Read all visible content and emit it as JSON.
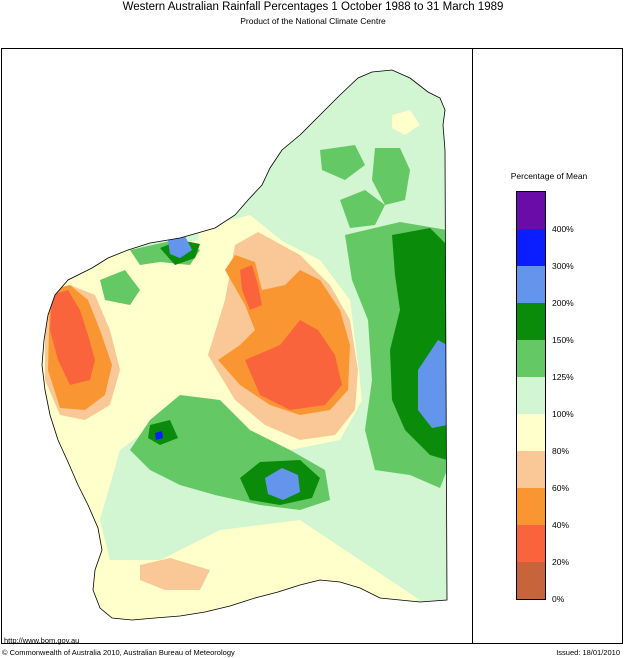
{
  "header": {
    "title": "Western Australian Rainfall Percentages 1 October 1988 to 31 March 1989",
    "subtitle": "Product of the National Climate Centre"
  },
  "legend": {
    "title": "Percentage of Mean",
    "classes": [
      {
        "range": "400%+",
        "color": "#6a0ca8"
      },
      {
        "range": "300-400%",
        "color": "#0a1eff"
      },
      {
        "range": "200-300%",
        "color": "#6495ed"
      },
      {
        "range": "150-200%",
        "color": "#0a8c0a"
      },
      {
        "range": "125-150%",
        "color": "#64c864"
      },
      {
        "range": "100-125%",
        "color": "#d2f5d2"
      },
      {
        "range": "80-100%",
        "color": "#ffffcc"
      },
      {
        "range": "60-80%",
        "color": "#fac896"
      },
      {
        "range": "40-60%",
        "color": "#fa9632"
      },
      {
        "range": "20-40%",
        "color": "#fa643c"
      },
      {
        "range": "0-20%",
        "color": "#c8643c"
      }
    ],
    "ticks": [
      "400%",
      "300%",
      "200%",
      "150%",
      "125%",
      "100%",
      "80%",
      "60%",
      "40%",
      "20%",
      "0%"
    ]
  },
  "footer": {
    "url": "http://www.bom.gov.au",
    "copyright": "© Commonwealth of Australia 2010, Australian Bureau of Meteorology",
    "issued": "Issued: 18/01/2010"
  }
}
